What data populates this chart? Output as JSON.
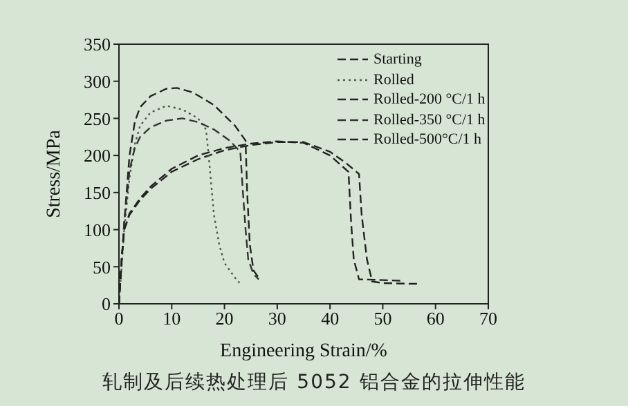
{
  "chart_data": {
    "type": "line",
    "xlabel": "Engineering Strain/%",
    "ylabel": "Stress/MPa",
    "xlim": [
      0,
      70
    ],
    "xticks": [
      0,
      10,
      20,
      30,
      40,
      50,
      60,
      70
    ],
    "ylim": [
      0,
      350
    ],
    "yticks": [
      0,
      50,
      100,
      150,
      200,
      250,
      300,
      350
    ],
    "legend": "top right",
    "marker": "none",
    "annotations": [
      "轧制及后续热处理后 5052 铝合金的拉伸性能"
    ],
    "series": [
      {
        "name": "Starting",
        "color": "#222222",
        "line_style": "dashed",
        "x": [
          0,
          0.5,
          1,
          2,
          4,
          6,
          10,
          15,
          20,
          25,
          30,
          35,
          40,
          43,
          45.5,
          46,
          47,
          48,
          50,
          55,
          57
        ],
        "values": [
          0,
          60,
          100,
          120,
          140,
          155,
          178,
          195,
          207,
          214,
          218,
          218,
          205,
          190,
          175,
          120,
          60,
          30,
          28,
          27,
          27
        ]
      },
      {
        "name": "Rolled",
        "color": "#555555",
        "line_style": "dotted",
        "x": [
          0,
          1,
          2,
          3,
          4,
          6,
          9,
          12,
          15,
          16.5,
          17,
          17.5,
          18,
          19,
          20,
          22,
          23
        ],
        "values": [
          0,
          100,
          170,
          215,
          240,
          258,
          267,
          262,
          250,
          235,
          200,
          160,
          120,
          80,
          55,
          35,
          27
        ]
      },
      {
        "name": "Rolled-200 °C/1 h",
        "color": "#222222",
        "line_style": "dashed",
        "x": [
          0,
          1,
          2,
          3,
          4,
          6,
          9,
          11,
          14,
          18,
          22,
          24,
          24.3,
          24.8,
          25.5,
          26.5
        ],
        "values": [
          0,
          110,
          200,
          245,
          265,
          280,
          290,
          291,
          285,
          268,
          240,
          220,
          150,
          80,
          45,
          35
        ]
      },
      {
        "name": "Rolled-350 °C/1 h",
        "color": "#333333",
        "line_style": "dashed",
        "x": [
          0,
          1,
          2,
          3,
          4,
          6,
          9,
          12,
          15,
          18,
          21,
          23,
          23.5,
          24,
          24.5,
          25.5,
          26.5
        ],
        "values": [
          0,
          110,
          180,
          210,
          225,
          238,
          247,
          250,
          245,
          235,
          220,
          205,
          150,
          100,
          60,
          40,
          33
        ]
      },
      {
        "name": "Rolled-500°C/1 h",
        "color": "#222222",
        "line_style": "dashed",
        "x": [
          0,
          0.5,
          1,
          2,
          4,
          6,
          10,
          15,
          20,
          25,
          30,
          35,
          40,
          43.5,
          44,
          44.5,
          45.5,
          50,
          54
        ],
        "values": [
          0,
          60,
          100,
          122,
          142,
          158,
          182,
          200,
          210,
          216,
          219,
          217,
          200,
          178,
          110,
          60,
          33,
          32,
          31
        ]
      }
    ]
  }
}
